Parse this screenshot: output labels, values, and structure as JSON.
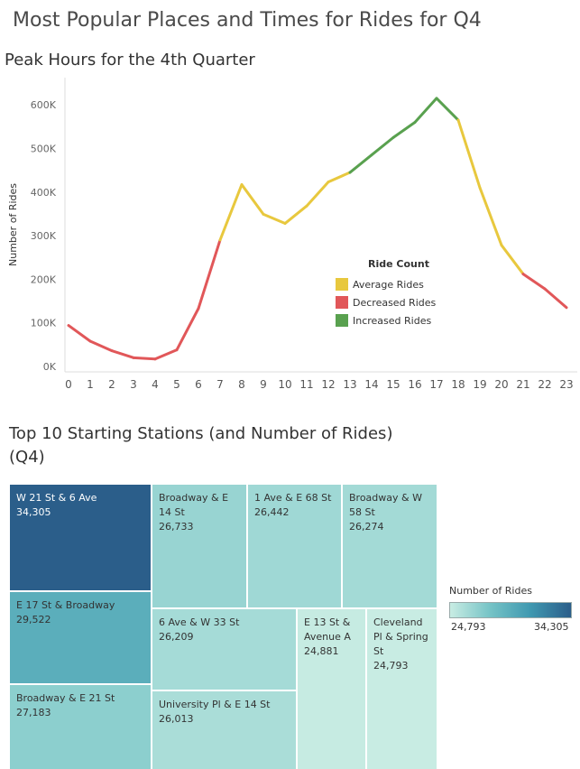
{
  "page": {
    "main_title": "Most Popular Places and Times for Rides for Q4"
  },
  "colors": {
    "average": "#e8c83e",
    "decreased": "#e15759",
    "increased": "#59a14f"
  },
  "chart_data": [
    {
      "type": "line",
      "title": "Peak Hours for the 4th Quarter",
      "xlabel": "",
      "ylabel": "Number of Rides",
      "x": [
        0,
        1,
        2,
        3,
        4,
        5,
        6,
        7,
        8,
        9,
        10,
        11,
        12,
        13,
        14,
        15,
        16,
        17,
        18,
        19,
        20,
        21,
        22,
        23
      ],
      "x_tick_labels": [
        "0",
        "1",
        "2",
        "3",
        "4",
        "5",
        "6",
        "7",
        "8",
        "9",
        "10",
        "11",
        "12",
        "13",
        "14",
        "15",
        "16",
        "17",
        "18",
        "19",
        "20",
        "21",
        "22",
        "23"
      ],
      "values": [
        94000,
        58000,
        36000,
        20000,
        17000,
        38000,
        133000,
        290000,
        417000,
        349000,
        328000,
        368000,
        423000,
        445000,
        485000,
        525000,
        560000,
        615000,
        565000,
        410000,
        278000,
        212000,
        178000,
        135000
      ],
      "ylim": [
        0,
        650000
      ],
      "y_ticks": [
        0,
        100000,
        200000,
        300000,
        400000,
        500000,
        600000
      ],
      "y_tick_labels": [
        "0K",
        "100K",
        "200K",
        "300K",
        "400K",
        "500K",
        "600K"
      ],
      "segment_categories": [
        "decreased",
        "decreased",
        "decreased",
        "decreased",
        "decreased",
        "decreased",
        "decreased",
        "average",
        "average",
        "average",
        "average",
        "average",
        "average",
        "increased",
        "increased",
        "increased",
        "increased",
        "increased",
        "average",
        "average",
        "average",
        "decreased",
        "decreased"
      ],
      "legend": {
        "title": "Ride Count",
        "position": "center-right",
        "entries": [
          {
            "key": "average",
            "label": "Average Rides"
          },
          {
            "key": "decreased",
            "label": "Decreased Rides"
          },
          {
            "key": "increased",
            "label": "Increased Rides"
          }
        ]
      },
      "grid": false
    },
    {
      "type": "treemap",
      "title": "Top 10 Starting Stations (and Number of Rides) (Q4)",
      "items": [
        {
          "label": "W 21 St & 6 Ave",
          "value": 34305,
          "value_label": "34,305"
        },
        {
          "label": "E 17 St & Broadway",
          "value": 29522,
          "value_label": "29,522"
        },
        {
          "label": "Broadway & E 21 St",
          "value": 27183,
          "value_label": "27,183"
        },
        {
          "label": "Broadway & E 14 St",
          "value": 26733,
          "value_label": "26,733"
        },
        {
          "label": "1 Ave & E 68 St",
          "value": 26442,
          "value_label": "26,442"
        },
        {
          "label": "Broadway & W 58 St",
          "value": 26274,
          "value_label": "26,274"
        },
        {
          "label": "6 Ave & W 33 St",
          "value": 26209,
          "value_label": "26,209"
        },
        {
          "label": "University Pl & E 14 St",
          "value": 26013,
          "value_label": "26,013"
        },
        {
          "label": "E 13 St & Avenue A",
          "value": 24881,
          "value_label": "24,881"
        },
        {
          "label": "Cleveland Pl & Spring St",
          "value": 24793,
          "value_label": "24,793"
        }
      ],
      "color_legend": {
        "title": "Number of Rides",
        "min": 24793,
        "max": 34305,
        "min_label": "24,793",
        "max_label": "34,305",
        "ramp_colors": [
          "#c8ece3",
          "#2b5e8a"
        ]
      }
    }
  ]
}
